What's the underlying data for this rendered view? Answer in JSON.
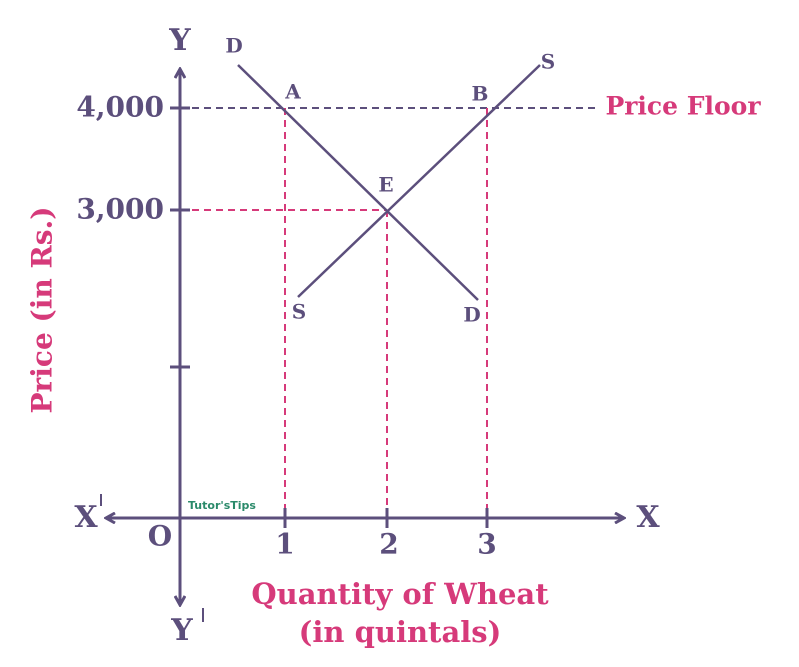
{
  "axes": {
    "y_top": "Y",
    "y_bottom": "Y",
    "x_right": "X",
    "x_left": "X",
    "origin": "O",
    "y_title": "Price (in Rs.)",
    "x_title": [
      "Quantity of Wheat",
      "(in quintals)"
    ]
  },
  "x_ticks": [
    "1",
    "2",
    "3"
  ],
  "y_ticks": [
    "4,000",
    "3,000"
  ],
  "points": {
    "A": "A",
    "B": "B",
    "E": "E"
  },
  "curves": {
    "demand_top": "D",
    "demand_bottom": "D",
    "supply_top": "S",
    "supply_bottom": "S"
  },
  "price_floor": "Price Floor",
  "watermark": "Tutor'sTips"
}
